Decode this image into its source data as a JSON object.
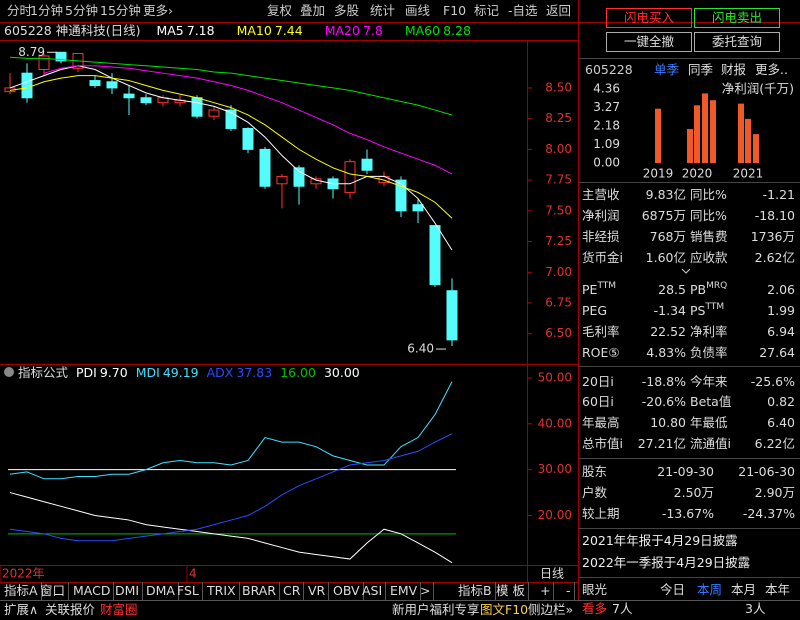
{
  "toolbar": {
    "left": [
      "分时",
      "1分钟",
      "5分钟",
      "15分钟",
      "更多›"
    ],
    "right": [
      "复权",
      "叠加",
      "多股",
      "统计",
      "画线",
      "F10",
      "标记",
      "-自选",
      "返回"
    ]
  },
  "chart_data": [
    {
      "type": "candlestick",
      "title": "605228 神通科技(日线)",
      "categories": [
        "2022年",
        null,
        null,
        null,
        null,
        null,
        null,
        null,
        null,
        null,
        null,
        "4",
        null,
        null,
        null,
        null,
        null,
        null,
        null,
        null,
        null,
        null,
        null,
        null,
        null,
        null,
        null
      ],
      "open": [
        8.47,
        8.62,
        8.65,
        8.79,
        8.66,
        8.56,
        8.55,
        8.45,
        8.42,
        8.38,
        8.38,
        8.42,
        8.27,
        8.32,
        8.17,
        8.0,
        7.72,
        7.85,
        7.72,
        7.76,
        7.65,
        7.92,
        7.73,
        7.75,
        7.55,
        7.38,
        6.85
      ],
      "high": [
        8.62,
        8.7,
        8.78,
        8.79,
        8.78,
        8.6,
        8.62,
        8.52,
        8.45,
        8.44,
        8.44,
        8.44,
        8.35,
        8.36,
        8.18,
        8.02,
        7.8,
        7.87,
        7.78,
        7.78,
        7.92,
        8.0,
        7.82,
        7.78,
        7.6,
        7.38,
        6.95
      ],
      "low": [
        8.45,
        8.38,
        8.6,
        8.7,
        8.63,
        8.5,
        8.45,
        8.28,
        8.36,
        8.35,
        8.35,
        8.25,
        8.24,
        8.15,
        7.97,
        7.68,
        7.52,
        7.55,
        7.68,
        7.6,
        7.6,
        7.8,
        7.7,
        7.45,
        7.4,
        6.88,
        6.4
      ],
      "close": [
        8.5,
        8.42,
        8.76,
        8.72,
        8.78,
        8.52,
        8.5,
        8.42,
        8.38,
        8.42,
        8.4,
        8.27,
        8.32,
        8.17,
        8.0,
        7.7,
        7.78,
        7.7,
        7.76,
        7.68,
        7.9,
        7.83,
        7.78,
        7.5,
        7.5,
        6.9,
        6.45
      ],
      "up_color": "#ff3232",
      "down_color": "#54fcfc",
      "series": [
        {
          "name": "MA5",
          "color": "#ffffff",
          "values": [
            8.5,
            8.55,
            8.6,
            8.65,
            8.68,
            8.65,
            8.58,
            8.52,
            8.46,
            8.42,
            8.4,
            8.38,
            8.35,
            8.3,
            8.22,
            8.1,
            7.95,
            7.82,
            7.75,
            7.72,
            7.72,
            7.78,
            7.78,
            7.72,
            7.6,
            7.4,
            7.18
          ]
        },
        {
          "name": "MA10",
          "color": "#ffff00",
          "values": [
            8.48,
            8.5,
            8.55,
            8.58,
            8.6,
            8.6,
            8.58,
            8.56,
            8.52,
            8.48,
            8.45,
            8.42,
            8.38,
            8.34,
            8.28,
            8.2,
            8.1,
            8.0,
            7.92,
            7.85,
            7.8,
            7.78,
            7.75,
            7.7,
            7.65,
            7.57,
            7.44
          ]
        },
        {
          "name": "MA20",
          "color": "#ff00ff",
          "values": [
            null,
            null,
            8.62,
            8.66,
            8.68,
            8.68,
            8.67,
            8.66,
            8.64,
            8.62,
            8.6,
            8.58,
            8.55,
            8.52,
            8.48,
            8.43,
            8.38,
            8.32,
            8.26,
            8.2,
            8.13,
            8.08,
            8.02,
            7.97,
            7.92,
            7.87,
            7.8
          ]
        },
        {
          "name": "MA60",
          "color": "#00e000",
          "values": [
            8.75,
            8.74,
            8.74,
            8.73,
            8.72,
            8.71,
            8.7,
            8.69,
            8.68,
            8.67,
            8.66,
            8.65,
            8.63,
            8.62,
            8.6,
            8.58,
            8.56,
            8.54,
            8.52,
            8.5,
            8.48,
            8.45,
            8.42,
            8.39,
            8.36,
            8.32,
            8.28
          ]
        }
      ],
      "ylim": [
        6.27,
        8.89
      ],
      "yticks": [
        {
          "value": 6.5,
          "label": "6.50"
        },
        {
          "value": 6.75,
          "label": "6.75"
        },
        {
          "value": 7,
          "label": "7.00"
        },
        {
          "value": 7.25,
          "label": "7.25"
        },
        {
          "value": 7.5,
          "label": "7.50"
        },
        {
          "value": 7.75,
          "label": "7.75"
        },
        {
          "value": 8,
          "label": "8.00"
        },
        {
          "value": 8.25,
          "label": "8.25"
        },
        {
          "value": 8.5,
          "label": "8.50"
        }
      ],
      "annotations": [
        "6.40"
      ],
      "period_label": "日线"
    },
    {
      "type": "line",
      "title": "指标公式",
      "series": [
        {
          "name": "PDI",
          "color": "#ffffff",
          "values": [
            25,
            24,
            23,
            22,
            21,
            20,
            19.5,
            19,
            18,
            17.5,
            17,
            16.5,
            16,
            15.5,
            15,
            14,
            13,
            12,
            11.5,
            11,
            10.5,
            14,
            17,
            16,
            14,
            12,
            9.7
          ],
          "value_labels": [
            null,
            null,
            null,
            null,
            null,
            null,
            null,
            null,
            null,
            null,
            null,
            null,
            null,
            null,
            null,
            null,
            null,
            null,
            null,
            null,
            null,
            null,
            null,
            null,
            null,
            null,
            "9.70"
          ]
        },
        {
          "name": "MDI",
          "color": "#40e0ff",
          "values": [
            29,
            29.5,
            28,
            28,
            28.5,
            28.5,
            29,
            29,
            30,
            31.5,
            32,
            31.5,
            31.5,
            31,
            32,
            37,
            36,
            36,
            35,
            33,
            32,
            31,
            31,
            35,
            37,
            42,
            49.19
          ]
        },
        {
          "name": "ADX",
          "color": "#2a4cff",
          "values": [
            17,
            16.5,
            16,
            15,
            14.5,
            14.5,
            14.5,
            15,
            15.5,
            16,
            16.5,
            17,
            18,
            19,
            20,
            22,
            24.5,
            26.5,
            28,
            29.5,
            31,
            31.5,
            32,
            33,
            34,
            36,
            37.83
          ]
        }
      ],
      "reference_lines": [
        {
          "value": 16,
          "label": "16.00",
          "color": "#00c000"
        },
        {
          "value": 30,
          "label": "30.00",
          "color": "#ffffff"
        }
      ],
      "ylim": [
        9.2,
        52.6
      ],
      "yticks": [
        {
          "value": 20,
          "label": "20.00"
        },
        {
          "value": 30,
          "label": "30.00"
        },
        {
          "value": 40,
          "label": "40.00"
        },
        {
          "value": 50,
          "label": "50.00"
        }
      ]
    },
    {
      "type": "bar",
      "title": "净利润(千万)",
      "categories": [
        "2019",
        null,
        "2020",
        null,
        null,
        null,
        "2021",
        null
      ],
      "values": [
        3.2,
        2.0,
        3.4,
        4.1,
        3.7,
        3.5,
        2.6,
        1.7
      ],
      "color": "#f05a28",
      "ylim": [
        0,
        4.36
      ],
      "yticks": [
        {
          "value": 0,
          "label": "0.00"
        },
        {
          "value": 1.09,
          "label": "1.09"
        },
        {
          "value": 2.18,
          "label": "2.18"
        },
        {
          "value": 3.27,
          "label": "3.27"
        },
        {
          "value": 4.36,
          "label": "4.36"
        }
      ]
    }
  ],
  "tab_bar": {
    "left": [
      "指标A",
      "窗口",
      "MACD",
      "DMI",
      "DMA",
      "FSL",
      "TRIX",
      "BRAR",
      "CR",
      "VR",
      "OBV",
      "ASI",
      "EMV",
      ">"
    ],
    "right": [
      "指标B",
      "模 板",
      "+",
      "-"
    ]
  },
  "status_bar": {
    "left": [
      "扩展∧",
      "关联报价",
      "财富圈"
    ],
    "right": [
      "新用户福利专享",
      "图文F10",
      "侧边栏»"
    ]
  },
  "right_panel": {
    "buttons": [
      "闪电买入",
      "闪电卖出",
      "一键全撤",
      "委托查询"
    ],
    "code": "605228",
    "tabs": [
      "单季",
      "同季",
      "财报",
      "更多.."
    ],
    "fundamentals": [
      [
        "主营收",
        "9.83亿",
        "同比%",
        "-1.21"
      ],
      [
        "净利润",
        "6875万",
        "同比%",
        "-18.10"
      ],
      [
        "非经损",
        "768万",
        "销售费",
        "1736万"
      ],
      [
        "货币金i",
        "1.60亿",
        "应收款",
        "2.62亿"
      ],
      [
        {
          "text": "PE",
          "sup": "TTM"
        },
        "28.5",
        {
          "text": "PB",
          "sup": "MRQ"
        },
        "2.06"
      ],
      [
        "PEG",
        "-1.34",
        {
          "text": "PS",
          "sup": "TTM"
        },
        "1.99"
      ],
      [
        "毛利率",
        "22.52",
        "净利率",
        "6.94"
      ],
      [
        "ROE⑤",
        "4.83%",
        "负债率",
        "27.64"
      ],
      [
        "20日i",
        "-18.8%",
        "今年来",
        "-25.6%"
      ],
      [
        "60日i",
        "-20.6%",
        "Beta值",
        "0.82"
      ],
      [
        "年最高",
        "10.80",
        "年最低",
        "6.40"
      ],
      [
        "总市值i",
        "27.21亿",
        "流通值i",
        "6.22亿"
      ]
    ],
    "holders": [
      [
        "股东",
        "21-09-30",
        "21-06-30"
      ],
      [
        "户数",
        "2.50万",
        "2.90万"
      ],
      [
        "较上期",
        "-13.67%",
        "-24.37%"
      ]
    ],
    "notices": [
      "2021年年报于4月29日披露",
      "2022年一季报于4月29日披露"
    ],
    "opinion": {
      "title": "眼光",
      "periods": [
        "今日",
        "本周",
        "本月",
        "本年"
      ],
      "bull": "看多",
      "bull_count": "7人",
      "bear_count": "3人"
    }
  }
}
